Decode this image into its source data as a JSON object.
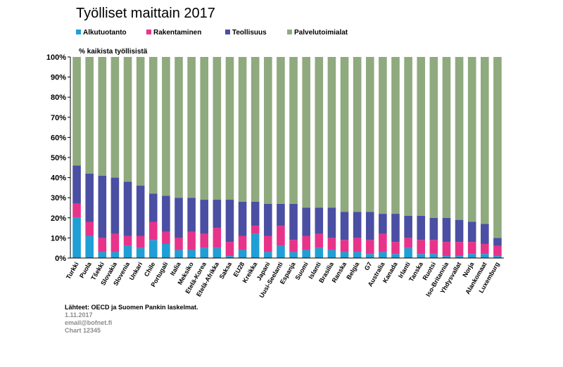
{
  "page": {
    "title": "Työlliset maittain 2017"
  },
  "footer": {
    "source": "Lähteet: OECD ja Suomen Pankin laskelmat.",
    "date": "1.11.2017",
    "email": "email@bofnet.fi",
    "code": "Chart 12345"
  },
  "chart_data": {
    "type": "bar",
    "stacked": true,
    "ylabel": "% kaikista työllisistä",
    "ylim": [
      0,
      100
    ],
    "yticks": [
      "0%",
      "10%",
      "20%",
      "30%",
      "40%",
      "50%",
      "60%",
      "70%",
      "80%",
      "90%",
      "100%"
    ],
    "legend_position": "top",
    "grid": false,
    "categories": [
      "Turkki",
      "Puola",
      "Tšekki",
      "Slovakia",
      "Slovenia",
      "Unkari",
      "Chile",
      "Portugali",
      "Italia",
      "Meksiko",
      "Etelä-Korea",
      "Etelä-Afrikka",
      "Saksa",
      "EU28",
      "Kreikka",
      "Japani",
      "Uusi-Seelanti",
      "Espanja",
      "Suomi",
      "Islanti",
      "Brasilia",
      "Ranska",
      "Belgia",
      "G7",
      "Australia",
      "Kanada",
      "Irlanti",
      "Tanska",
      "Ruotsi",
      "Iso-Britannia",
      "Yhdysvallat",
      "Norja",
      "Alankomaat",
      "Luxemburg"
    ],
    "series": [
      {
        "name": "Alkutuotanto",
        "color": "#1f9fd6",
        "values": [
          20,
          11,
          3,
          3,
          6,
          5,
          9,
          7,
          4,
          4,
          5,
          5,
          1,
          4,
          12,
          3,
          6,
          3,
          4,
          5,
          4,
          3,
          3,
          2,
          3,
          2,
          5,
          2,
          2,
          1,
          1,
          2,
          2,
          1
        ]
      },
      {
        "name": "Rakentaminen",
        "color": "#e8338a",
        "values": [
          7,
          7,
          7,
          9,
          5,
          6,
          9,
          6,
          6,
          9,
          7,
          10,
          7,
          7,
          4,
          8,
          10,
          6,
          7,
          7,
          6,
          6,
          7,
          7,
          9,
          6,
          5,
          7,
          7,
          7,
          7,
          6,
          5,
          5
        ]
      },
      {
        "name": "Teollisuus",
        "color": "#4a4fa3",
        "values": [
          19,
          24,
          31,
          28,
          27,
          25,
          14,
          18,
          20,
          17,
          17,
          14,
          21,
          17,
          12,
          16,
          11,
          18,
          14,
          13,
          15,
          14,
          13,
          14,
          10,
          14,
          11,
          12,
          11,
          12,
          11,
          10,
          10,
          4
        ]
      },
      {
        "name": "Palvelutoimialat",
        "color": "#8faa7e",
        "values": [
          54,
          58,
          59,
          60,
          62,
          64,
          68,
          69,
          70,
          70,
          71,
          71,
          71,
          72,
          72,
          73,
          73,
          73,
          75,
          75,
          75,
          77,
          77,
          77,
          78,
          78,
          79,
          79,
          80,
          80,
          81,
          82,
          83,
          90
        ]
      }
    ]
  }
}
